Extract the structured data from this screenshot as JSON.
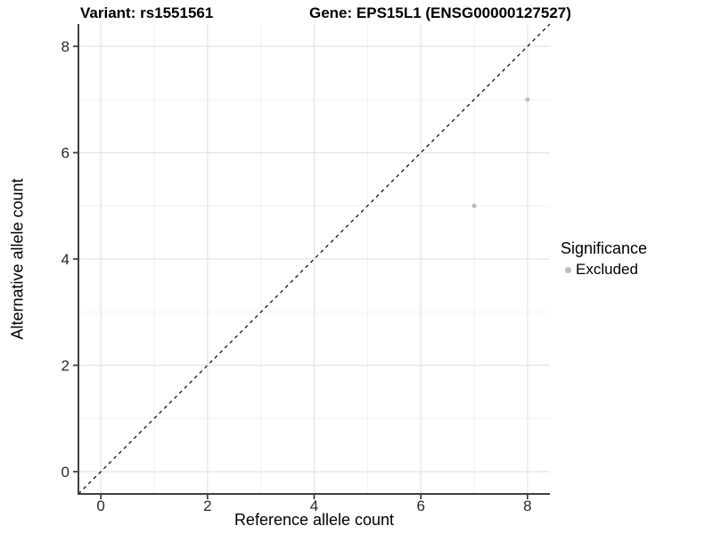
{
  "chart_data": {
    "type": "scatter",
    "title_left": "Variant: rs1551561",
    "title_right": "Gene: EPS15L1 (ENSG00000127527)",
    "xlabel": "Reference allele count",
    "ylabel": "Alternative allele count",
    "xlim": [
      -0.42,
      8.42
    ],
    "ylim": [
      -0.42,
      8.42
    ],
    "x_ticks": [
      0,
      2,
      4,
      6,
      8
    ],
    "y_ticks": [
      0,
      2,
      4,
      6,
      8
    ],
    "x_minor": [
      1,
      3,
      5,
      7
    ],
    "y_minor": [
      1,
      3,
      5,
      7
    ],
    "grid": true,
    "identity_line": {
      "style": "dashed",
      "slope": 1,
      "intercept": 0,
      "color": "#000000"
    },
    "series": [
      {
        "name": "Excluded",
        "color": "#bdbdbd",
        "points": [
          {
            "x": 7,
            "y": 5
          },
          {
            "x": 8,
            "y": 7
          }
        ]
      }
    ],
    "legend": {
      "title": "Significance",
      "position": "right",
      "entries": [
        {
          "label": "Excluded",
          "color": "#bdbdbd"
        }
      ]
    }
  },
  "colors": {
    "background": "#ffffff",
    "grid_major": "#e5e5e5",
    "grid_minor": "#f1f1f1",
    "axis_line": "#404040",
    "tick_text": "#262626",
    "point": "#bdbdbd"
  }
}
